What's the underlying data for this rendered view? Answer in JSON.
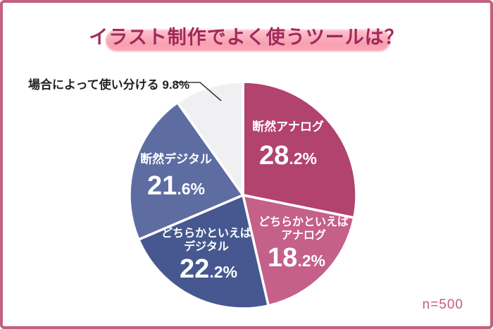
{
  "chart_data": {
    "type": "pie",
    "title": "イラスト制作でよく使うツールは？",
    "sample_label": "n=500",
    "start_angle_deg": 0,
    "direction": "clockwise",
    "legend_position": "none",
    "slices": [
      {
        "label": "断然アナログ",
        "lines": [
          "断然アナログ"
        ],
        "value": 28.2,
        "pct_int": "28",
        "pct_dec": ".2%",
        "color": "#b2436e"
      },
      {
        "label": "どちらかといえばアナログ",
        "lines": [
          "どちらかといえば",
          "アナログ"
        ],
        "value": 18.2,
        "pct_int": "18",
        "pct_dec": ".2%",
        "color": "#c4608a"
      },
      {
        "label": "どちらかといえばデジタル",
        "lines": [
          "どちらかといえば",
          "デジタル"
        ],
        "value": 22.2,
        "pct_int": "22",
        "pct_dec": ".2%",
        "color": "#46588f"
      },
      {
        "label": "断然デジタル",
        "lines": [
          "断然デジタル"
        ],
        "value": 21.6,
        "pct_int": "21",
        "pct_dec": ".6%",
        "color": "#5e6da1"
      },
      {
        "label": "場合によって使い分ける",
        "value": 9.8,
        "color": "#f0f0f3",
        "external_label": "場合によって使い分ける 9.8%"
      }
    ]
  },
  "colors": {
    "frame_border": "#c2607f",
    "title_text": "#a1295b",
    "title_highlight": "#f79fb0",
    "slice_gap": "#ffffff",
    "slice_text": "#ffffff",
    "external_label_text": "#222222",
    "leader_line": "#333333",
    "note_text": "#c25c7c"
  }
}
